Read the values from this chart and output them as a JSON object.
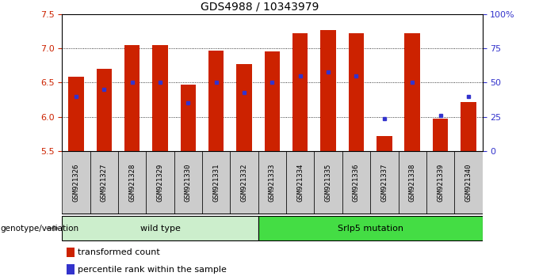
{
  "title": "GDS4988 / 10343979",
  "samples": [
    "GSM921326",
    "GSM921327",
    "GSM921328",
    "GSM921329",
    "GSM921330",
    "GSM921331",
    "GSM921332",
    "GSM921333",
    "GSM921334",
    "GSM921335",
    "GSM921336",
    "GSM921337",
    "GSM921338",
    "GSM921339",
    "GSM921340"
  ],
  "red_values": [
    6.58,
    6.7,
    7.05,
    7.05,
    6.47,
    6.97,
    6.77,
    6.95,
    7.22,
    7.27,
    7.22,
    5.72,
    7.22,
    5.97,
    6.22
  ],
  "blue_percentiles": [
    40,
    45,
    50,
    50,
    35,
    50,
    43,
    50,
    55,
    58,
    55,
    24,
    50,
    26,
    40
  ],
  "ymin": 5.5,
  "ymax": 7.5,
  "yticks": [
    5.5,
    6.0,
    6.5,
    7.0,
    7.5
  ],
  "dotted_lines": [
    6.0,
    6.5,
    7.0
  ],
  "right_yticks": [
    0,
    25,
    50,
    75,
    100
  ],
  "right_yticklabels": [
    "0",
    "25",
    "50",
    "75",
    "100%"
  ],
  "wt_count": 7,
  "mut_count": 8,
  "wild_type_label": "wild type",
  "mutation_label": "Srlp5 mutation",
  "genotype_label": "genotype/variation",
  "legend_red": "transformed count",
  "legend_blue": "percentile rank within the sample",
  "bar_color": "#cc2200",
  "blue_color": "#3333cc",
  "wild_type_color": "#cceecc",
  "mutation_color": "#44dd44",
  "bg_color": "#cccccc",
  "bar_width": 0.55,
  "baseline": 5.5
}
